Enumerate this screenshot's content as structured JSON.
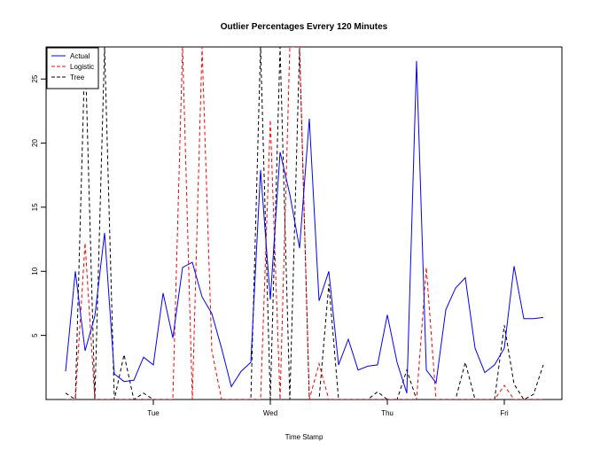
{
  "chart_data": {
    "type": "line",
    "title": "Outlier Percentages Evrery  120  Minutes",
    "xlabel": "Time Stamp",
    "ylabel": "",
    "x_tick_labels": [
      "Tue",
      "Wed",
      "Thu",
      "Fri"
    ],
    "y_ticks": [
      5,
      10,
      15,
      20,
      25
    ],
    "ylim": [
      0,
      27.5
    ],
    "grid": false,
    "legend_position": "top-left",
    "series": [
      {
        "name": "Actual",
        "color": "#0000ff",
        "dash": "solid",
        "values": [
          2.2,
          10.0,
          3.8,
          6.5,
          13.0,
          2.0,
          1.4,
          1.5,
          3.3,
          2.7,
          8.3,
          4.8,
          10.3,
          10.7,
          8.0,
          6.7,
          4.0,
          1.0,
          2.2,
          2.9,
          17.9,
          7.8,
          19.3,
          16.0,
          11.8,
          21.9,
          7.7,
          10.0,
          2.7,
          4.7,
          2.3,
          2.6,
          2.7,
          6.6,
          2.9,
          0.5,
          26.4,
          2.3,
          1.3,
          7.0,
          8.7,
          9.5,
          4.0,
          2.1,
          2.7,
          4.0,
          10.4,
          6.3,
          6.3,
          6.4
        ]
      },
      {
        "name": "Logistic",
        "color": "#ff0000",
        "dash": "dashed",
        "values": [
          0,
          0,
          12.2,
          0,
          0,
          0,
          0,
          0,
          0,
          0,
          0,
          0,
          27.5,
          0,
          27.5,
          3.8,
          0,
          0,
          0,
          0,
          0,
          21.8,
          0,
          27.5,
          27.5,
          0,
          2.8,
          0,
          0,
          0,
          0,
          0,
          0,
          0,
          0,
          0,
          0,
          10.3,
          0,
          0,
          0,
          0,
          0,
          0,
          0,
          1.1,
          0,
          0,
          0,
          0
        ]
      },
      {
        "name": "Tree",
        "color": "#000000",
        "dash": "dashed",
        "values": [
          0.5,
          0,
          27.5,
          0,
          27.5,
          0,
          3.5,
          0,
          0.5,
          0,
          0,
          0,
          0,
          0,
          0,
          0,
          0,
          0,
          0,
          0,
          27.5,
          0,
          27.5,
          0,
          27.5,
          0,
          0,
          9.0,
          0,
          0,
          0,
          0,
          0.6,
          0,
          0,
          2.3,
          0,
          0,
          0,
          0,
          0,
          2.9,
          0,
          0,
          0,
          5.8,
          1.2,
          0,
          0.4,
          2.7
        ]
      }
    ]
  }
}
